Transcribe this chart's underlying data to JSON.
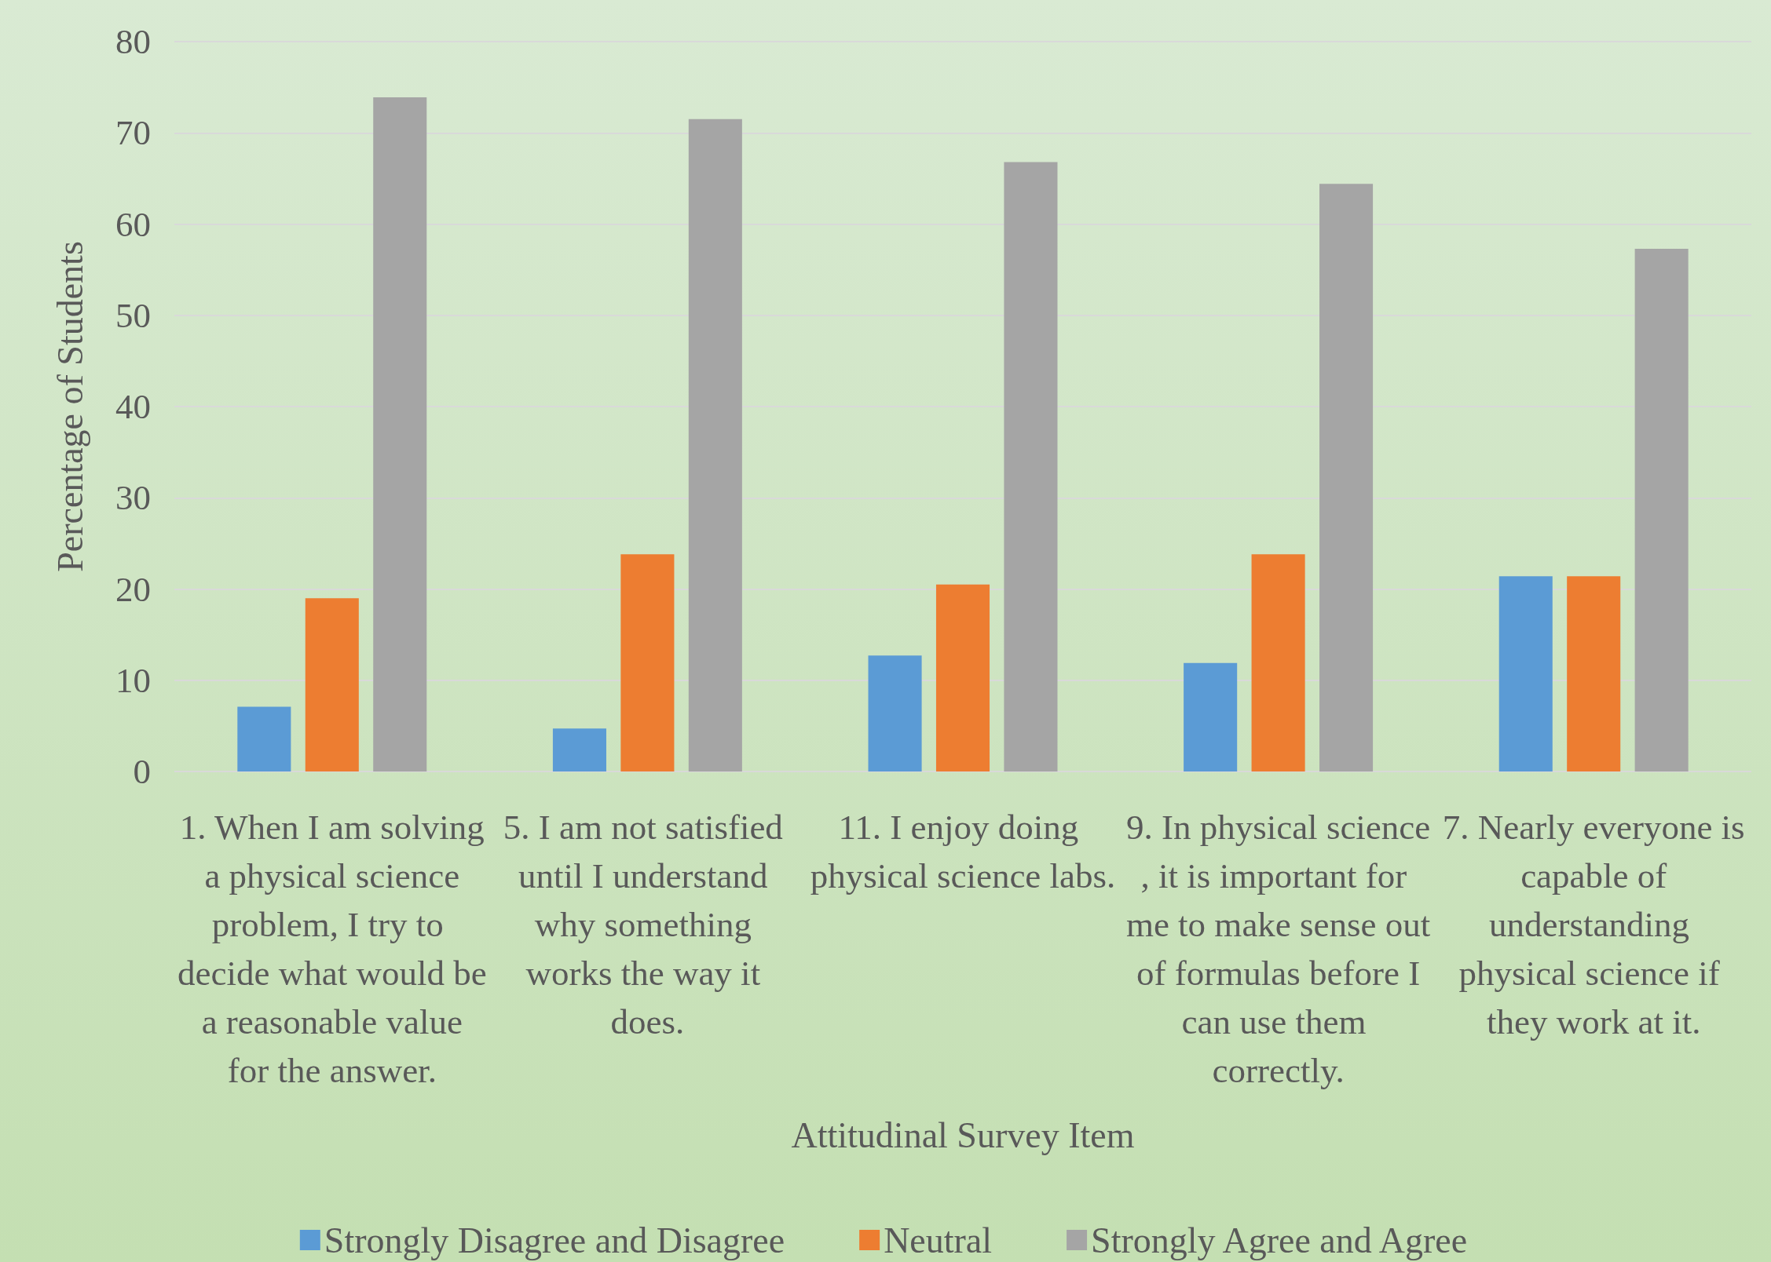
{
  "chart_data": {
    "type": "bar",
    "categories": [
      "1. When I am solving a physical science problem, I try to decide what would be a reasonable value for the answer.",
      "5. I am not satisfied until I understand why something works the way it does.",
      "11. I enjoy doing physical science labs.",
      "9. In physical science, it is important for me to make sense out of formulas before I can use them correctly.",
      "7. Nearly everyone is capable of understanding physical science if they work at it."
    ],
    "series": [
      {
        "name": "Strongly Disagree and Disagree",
        "color": "#5b9bd5",
        "values": [
          7.1,
          4.7,
          12.7,
          11.9,
          21.4
        ]
      },
      {
        "name": "Neutral",
        "color": "#ed7d31",
        "values": [
          19.0,
          23.8,
          20.5,
          23.8,
          21.4
        ]
      },
      {
        "name": "Strongly Agree and Agree",
        "color": "#a5a5a5",
        "values": [
          73.9,
          71.5,
          66.8,
          64.4,
          57.3
        ]
      }
    ],
    "xlabel": "Attitudinal Survey Item",
    "ylabel": "Percentage of Students",
    "ylim": [
      0,
      80
    ],
    "yticks": [
      0,
      10,
      20,
      30,
      40,
      50,
      60,
      70,
      80
    ],
    "grid": "y",
    "legend": "bottom"
  }
}
